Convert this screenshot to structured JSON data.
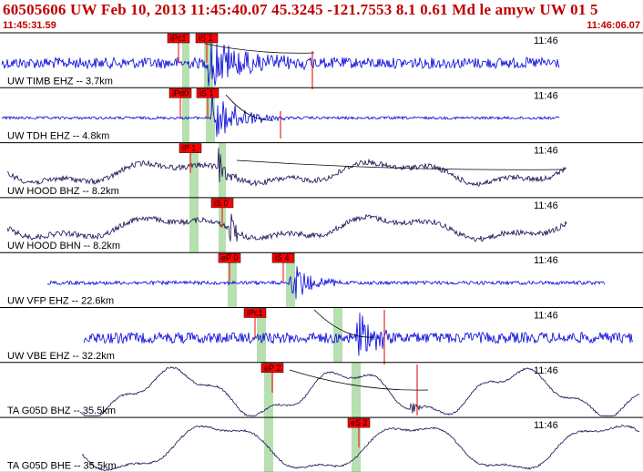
{
  "header": {
    "title": "60505606 UW Feb 10, 2013 11:45:40.07    45.3245 -121.7553  8.1 0.61 Md le amyw UW 01   5",
    "start_time": "11:45:31.59",
    "end_time": "11:46:06.07"
  },
  "colors": {
    "header_text": "#c00000",
    "pick_box": "#ff0000",
    "pick_window": "#b7e0b0",
    "trace_blue": "#0000dd",
    "trace_dark": "#1a0a50",
    "fit_curve": "#000000",
    "amp_marker": "#dd0000"
  },
  "traces": [
    {
      "label": "UW TIMB EHZ -- 3.7km",
      "time_tick": "11:46",
      "picks": [
        "iPc1",
        "iS 1"
      ],
      "style": "blue"
    },
    {
      "label": "UW TDH EHZ -- 4.8km",
      "time_tick": "11:46",
      "picks": [
        "iPd0",
        "iS 1"
      ],
      "style": "blue"
    },
    {
      "label": "UW HOOD BHZ -- 8.2km",
      "time_tick": "11:46",
      "picks": [
        "iP 1"
      ],
      "style": "dark"
    },
    {
      "label": "UW HOOD BHN -- 8.2km",
      "time_tick": "11:46",
      "picks": [
        "iS 0"
      ],
      "style": "dark"
    },
    {
      "label": "UW VFP EHZ -- 22.6km",
      "time_tick": "11:46",
      "picks": [
        "eP 0",
        "iS 4"
      ],
      "style": "blue"
    },
    {
      "label": "UW VBE EHZ -- 32.2km",
      "time_tick": "11:46",
      "picks": [
        "iPc1"
      ],
      "style": "blue"
    },
    {
      "label": "TA G05D BHZ -- 35.5km",
      "time_tick": "11:46",
      "picks": [
        "eP 2"
      ],
      "style": "dark"
    },
    {
      "label": "TA G05D BHE -- 35.5km",
      "time_tick": "11:46",
      "picks": [
        "eS 2"
      ],
      "style": "dark"
    }
  ]
}
